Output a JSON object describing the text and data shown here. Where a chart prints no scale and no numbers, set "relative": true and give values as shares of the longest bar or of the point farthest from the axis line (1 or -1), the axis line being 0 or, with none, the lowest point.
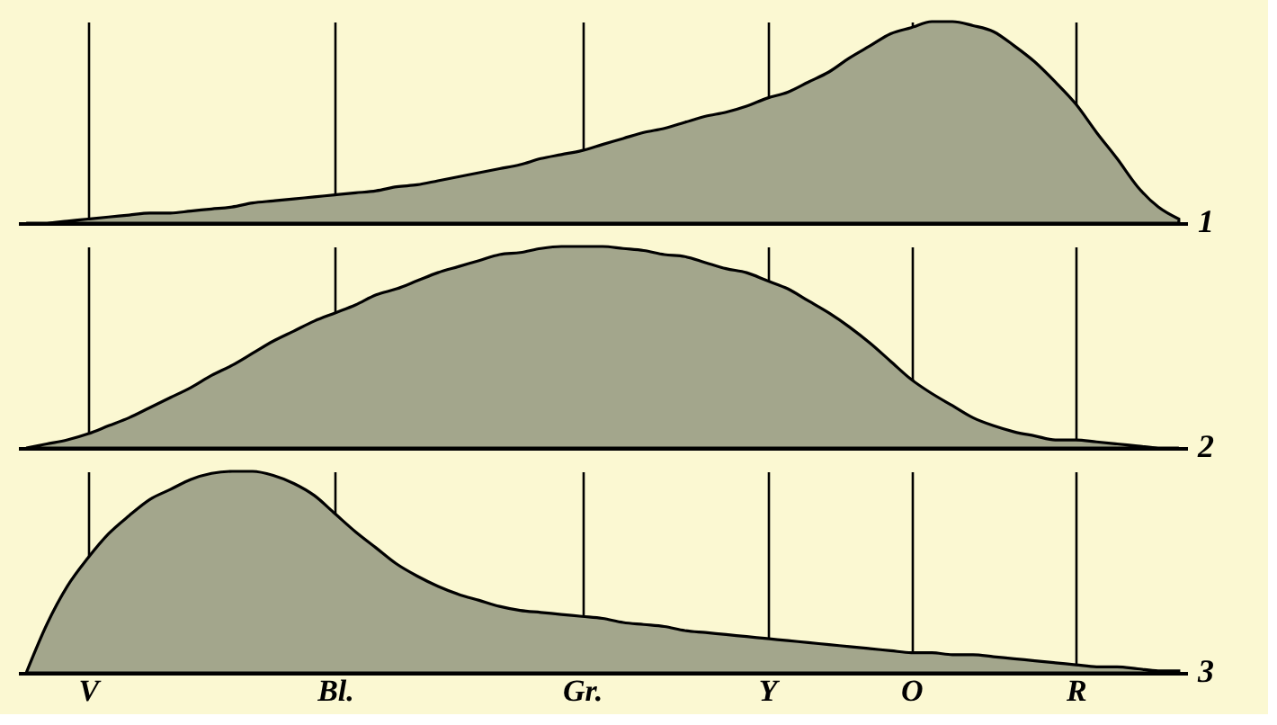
{
  "chart_data": [
    {
      "type": "area",
      "relative": true,
      "grid": "x",
      "tick_labels": false,
      "annotations": [
        "1"
      ],
      "color": "#a3a68c",
      "categories": [
        null,
        null,
        null,
        null,
        null,
        null,
        null,
        null,
        null,
        null,
        null,
        null,
        null,
        null,
        null,
        null,
        null,
        null,
        null,
        null,
        null,
        null,
        null,
        null,
        null,
        null,
        null,
        null,
        null,
        null,
        null,
        null,
        null,
        null,
        null,
        null,
        null,
        null,
        null,
        null,
        null,
        null,
        null,
        null,
        null,
        null,
        null,
        null,
        null,
        null,
        null,
        null,
        null,
        null,
        null,
        null,
        null
      ],
      "values": [
        0,
        0,
        0.01,
        0.02,
        0.03,
        0.04,
        0.05,
        0.05,
        0.06,
        0.07,
        0.08,
        0.1,
        0.11,
        0.12,
        0.13,
        0.14,
        0.15,
        0.16,
        0.18,
        0.19,
        0.21,
        0.23,
        0.25,
        0.27,
        0.29,
        0.32,
        0.34,
        0.36,
        0.39,
        0.42,
        0.45,
        0.47,
        0.5,
        0.53,
        0.55,
        0.58,
        0.62,
        0.65,
        0.7,
        0.75,
        0.82,
        0.88,
        0.94,
        0.97,
        1,
        1,
        0.98,
        0.95,
        0.88,
        0.8,
        0.7,
        0.59,
        0.45,
        0.32,
        0.18,
        0.08,
        0.02
      ]
    },
    {
      "type": "area",
      "relative": true,
      "grid": "x",
      "tick_labels": false,
      "annotations": [
        "2"
      ],
      "color": "#a3a68c",
      "categories": [
        null,
        null,
        null,
        null,
        null,
        null,
        null,
        null,
        null,
        null,
        null,
        null,
        null,
        null,
        null,
        null,
        null,
        null,
        null,
        null,
        null,
        null,
        null,
        null,
        null,
        null,
        null,
        null,
        null,
        null,
        null,
        null,
        null,
        null,
        null,
        null,
        null,
        null,
        null,
        null,
        null,
        null,
        null,
        null,
        null,
        null,
        null,
        null,
        null,
        null,
        null,
        null,
        null,
        null,
        null,
        null,
        null
      ],
      "values": [
        0,
        0.02,
        0.04,
        0.07,
        0.11,
        0.15,
        0.2,
        0.25,
        0.3,
        0.36,
        0.41,
        0.47,
        0.53,
        0.58,
        0.63,
        0.67,
        0.71,
        0.76,
        0.79,
        0.83,
        0.87,
        0.9,
        0.93,
        0.96,
        0.97,
        0.99,
        1,
        1,
        1,
        0.99,
        0.98,
        0.96,
        0.95,
        0.92,
        0.89,
        0.87,
        0.83,
        0.79,
        0.73,
        0.67,
        0.6,
        0.52,
        0.43,
        0.34,
        0.27,
        0.21,
        0.15,
        0.11,
        0.08,
        0.06,
        0.04,
        0.04,
        0.03,
        0.02,
        0.01,
        0,
        0
      ]
    },
    {
      "type": "area",
      "relative": true,
      "grid": "x",
      "tick_labels": "x",
      "annotations": [
        "3"
      ],
      "color": "#a3a68c",
      "categories": [
        null,
        null,
        null,
        "V",
        null,
        null,
        null,
        null,
        null,
        null,
        null,
        null,
        null,
        null,
        null,
        "Bl.",
        null,
        null,
        null,
        null,
        null,
        null,
        null,
        null,
        null,
        null,
        null,
        "Gr.",
        null,
        null,
        null,
        null,
        null,
        null,
        null,
        null,
        "Y",
        null,
        null,
        null,
        null,
        null,
        null,
        "O",
        null,
        null,
        null,
        null,
        null,
        null,
        null,
        "R",
        null,
        null,
        null,
        null,
        null
      ],
      "values": [
        0,
        0.24,
        0.43,
        0.57,
        0.69,
        0.78,
        0.86,
        0.91,
        0.96,
        0.99,
        1,
        1,
        0.98,
        0.94,
        0.88,
        0.79,
        0.7,
        0.62,
        0.54,
        0.48,
        0.43,
        0.39,
        0.36,
        0.33,
        0.31,
        0.3,
        0.29,
        0.28,
        0.27,
        0.25,
        0.24,
        0.23,
        0.21,
        0.2,
        0.19,
        0.18,
        0.17,
        0.16,
        0.15,
        0.14,
        0.13,
        0.12,
        0.11,
        0.1,
        0.1,
        0.09,
        0.09,
        0.08,
        0.07,
        0.06,
        0.05,
        0.04,
        0.03,
        0.03,
        0.02,
        0.01,
        0.01
      ]
    }
  ]
}
